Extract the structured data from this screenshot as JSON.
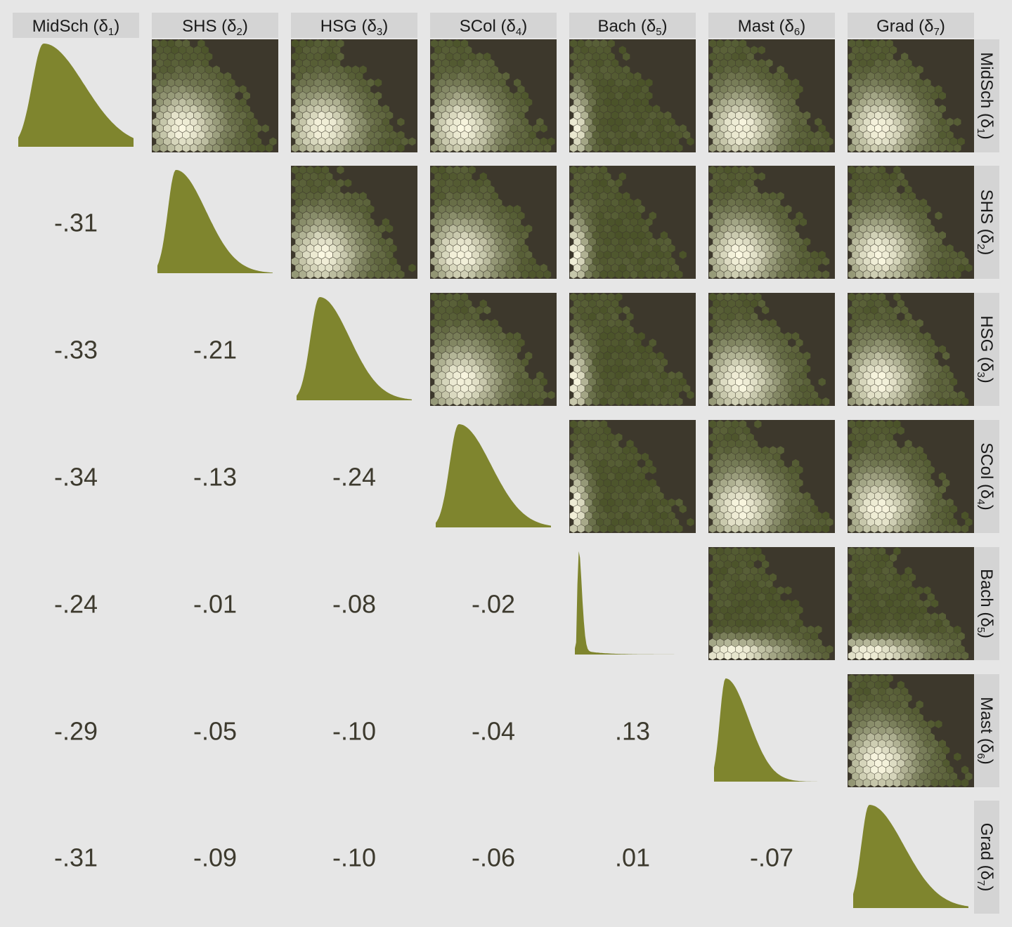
{
  "chart_data": {
    "type": "scatterplot-matrix",
    "variables": [
      {
        "label": "MidSch",
        "sub": "1"
      },
      {
        "label": "SHS",
        "sub": "2"
      },
      {
        "label": "HSG",
        "sub": "3"
      },
      {
        "label": "SCol",
        "sub": "4"
      },
      {
        "label": "Bach",
        "sub": "5"
      },
      {
        "label": "Mast",
        "sub": "6"
      },
      {
        "label": "Grad",
        "sub": "7"
      }
    ],
    "delta_symbol": "δ",
    "lower_panels": "correlation",
    "diagonal_panels": "density",
    "upper_panels": "hexbin",
    "correlations": [
      {
        "row": 2,
        "col": 1,
        "value": "-.31"
      },
      {
        "row": 3,
        "col": 1,
        "value": "-.33"
      },
      {
        "row": 3,
        "col": 2,
        "value": "-.21"
      },
      {
        "row": 4,
        "col": 1,
        "value": "-.34"
      },
      {
        "row": 4,
        "col": 2,
        "value": "-.13"
      },
      {
        "row": 4,
        "col": 3,
        "value": "-.24"
      },
      {
        "row": 5,
        "col": 1,
        "value": "-.24"
      },
      {
        "row": 5,
        "col": 2,
        "value": "-.01"
      },
      {
        "row": 5,
        "col": 3,
        "value": "-.08"
      },
      {
        "row": 5,
        "col": 4,
        "value": "-.02"
      },
      {
        "row": 6,
        "col": 1,
        "value": "-.29"
      },
      {
        "row": 6,
        "col": 2,
        "value": "-.05"
      },
      {
        "row": 6,
        "col": 3,
        "value": "-.10"
      },
      {
        "row": 6,
        "col": 4,
        "value": "-.04"
      },
      {
        "row": 6,
        "col": 5,
        "value": ".13"
      },
      {
        "row": 7,
        "col": 1,
        "value": "-.31"
      },
      {
        "row": 7,
        "col": 2,
        "value": "-.09"
      },
      {
        "row": 7,
        "col": 3,
        "value": "-.10"
      },
      {
        "row": 7,
        "col": 4,
        "value": "-.06"
      },
      {
        "row": 7,
        "col": 5,
        "value": ".01"
      },
      {
        "row": 7,
        "col": 6,
        "value": "-.07"
      }
    ],
    "colors": {
      "background": "#e6e6e6",
      "strip": "#d4d4d4",
      "hex_panel_background": "#3d382c",
      "density_fill": "#7f852e",
      "hex_low": "#4a5228",
      "hex_high": "#fbf8e2",
      "correlation_text": "#3d3a2e"
    }
  }
}
